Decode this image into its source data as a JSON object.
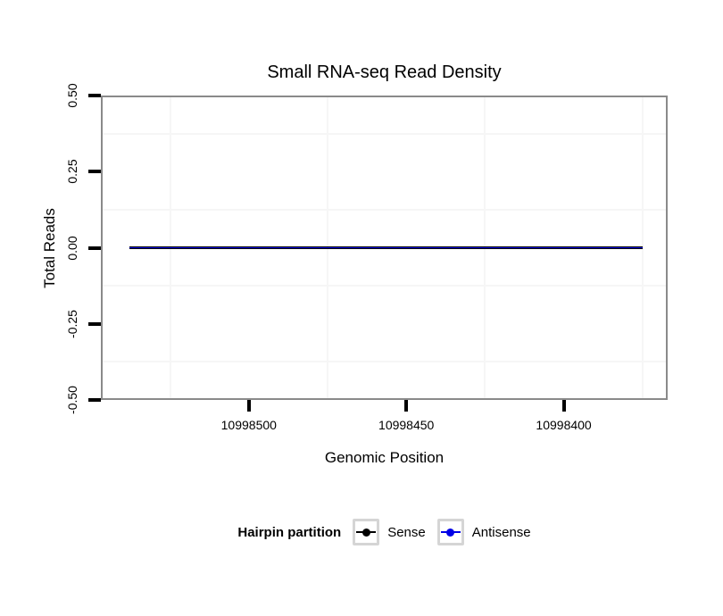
{
  "chart_data": {
    "type": "line",
    "title": "Small RNA-seq Read Density",
    "xlabel": "Genomic Position",
    "ylabel": "Total Reads",
    "grid": "minor-only",
    "x_axis": {
      "reversed": true,
      "lim": [
        10998547,
        10998367
      ],
      "ticks": [
        {
          "value": 10998500,
          "label": "10998500"
        },
        {
          "value": 10998450,
          "label": "10998450"
        },
        {
          "value": 10998400,
          "label": "10998400"
        }
      ],
      "minor_gridlines": [
        10998525,
        10998475,
        10998425,
        10998375
      ]
    },
    "y_axis": {
      "lim": [
        -0.5,
        0.5
      ],
      "ticks": [
        {
          "value": 0.5,
          "label": "0.50"
        },
        {
          "value": 0.25,
          "label": "0.25"
        },
        {
          "value": 0.0,
          "label": "0.00"
        },
        {
          "value": -0.25,
          "label": "-0.25"
        },
        {
          "value": -0.5,
          "label": "-0.50"
        }
      ],
      "minor_gridlines": [
        0.375,
        0.125,
        -0.125,
        -0.375
      ]
    },
    "series": [
      {
        "name": "Sense",
        "color": "#000000",
        "x": [
          10998538,
          10998375
        ],
        "y": [
          0,
          0
        ]
      },
      {
        "name": "Antisense",
        "color": "#0000e6",
        "x": [
          10998538,
          10998375
        ],
        "y": [
          0,
          0
        ]
      }
    ],
    "legend": {
      "title": "Hairpin partition",
      "position": "bottom",
      "items": [
        {
          "label": "Sense",
          "color": "#000000"
        },
        {
          "label": "Antisense",
          "color": "#0000e6"
        }
      ]
    },
    "colors": {
      "panel_border": "#8a8a8a",
      "tick": "#000000",
      "minor_grid": "#f6f6f6",
      "legend_key_border": "#d5d5d5",
      "background": "#ffffff"
    }
  }
}
